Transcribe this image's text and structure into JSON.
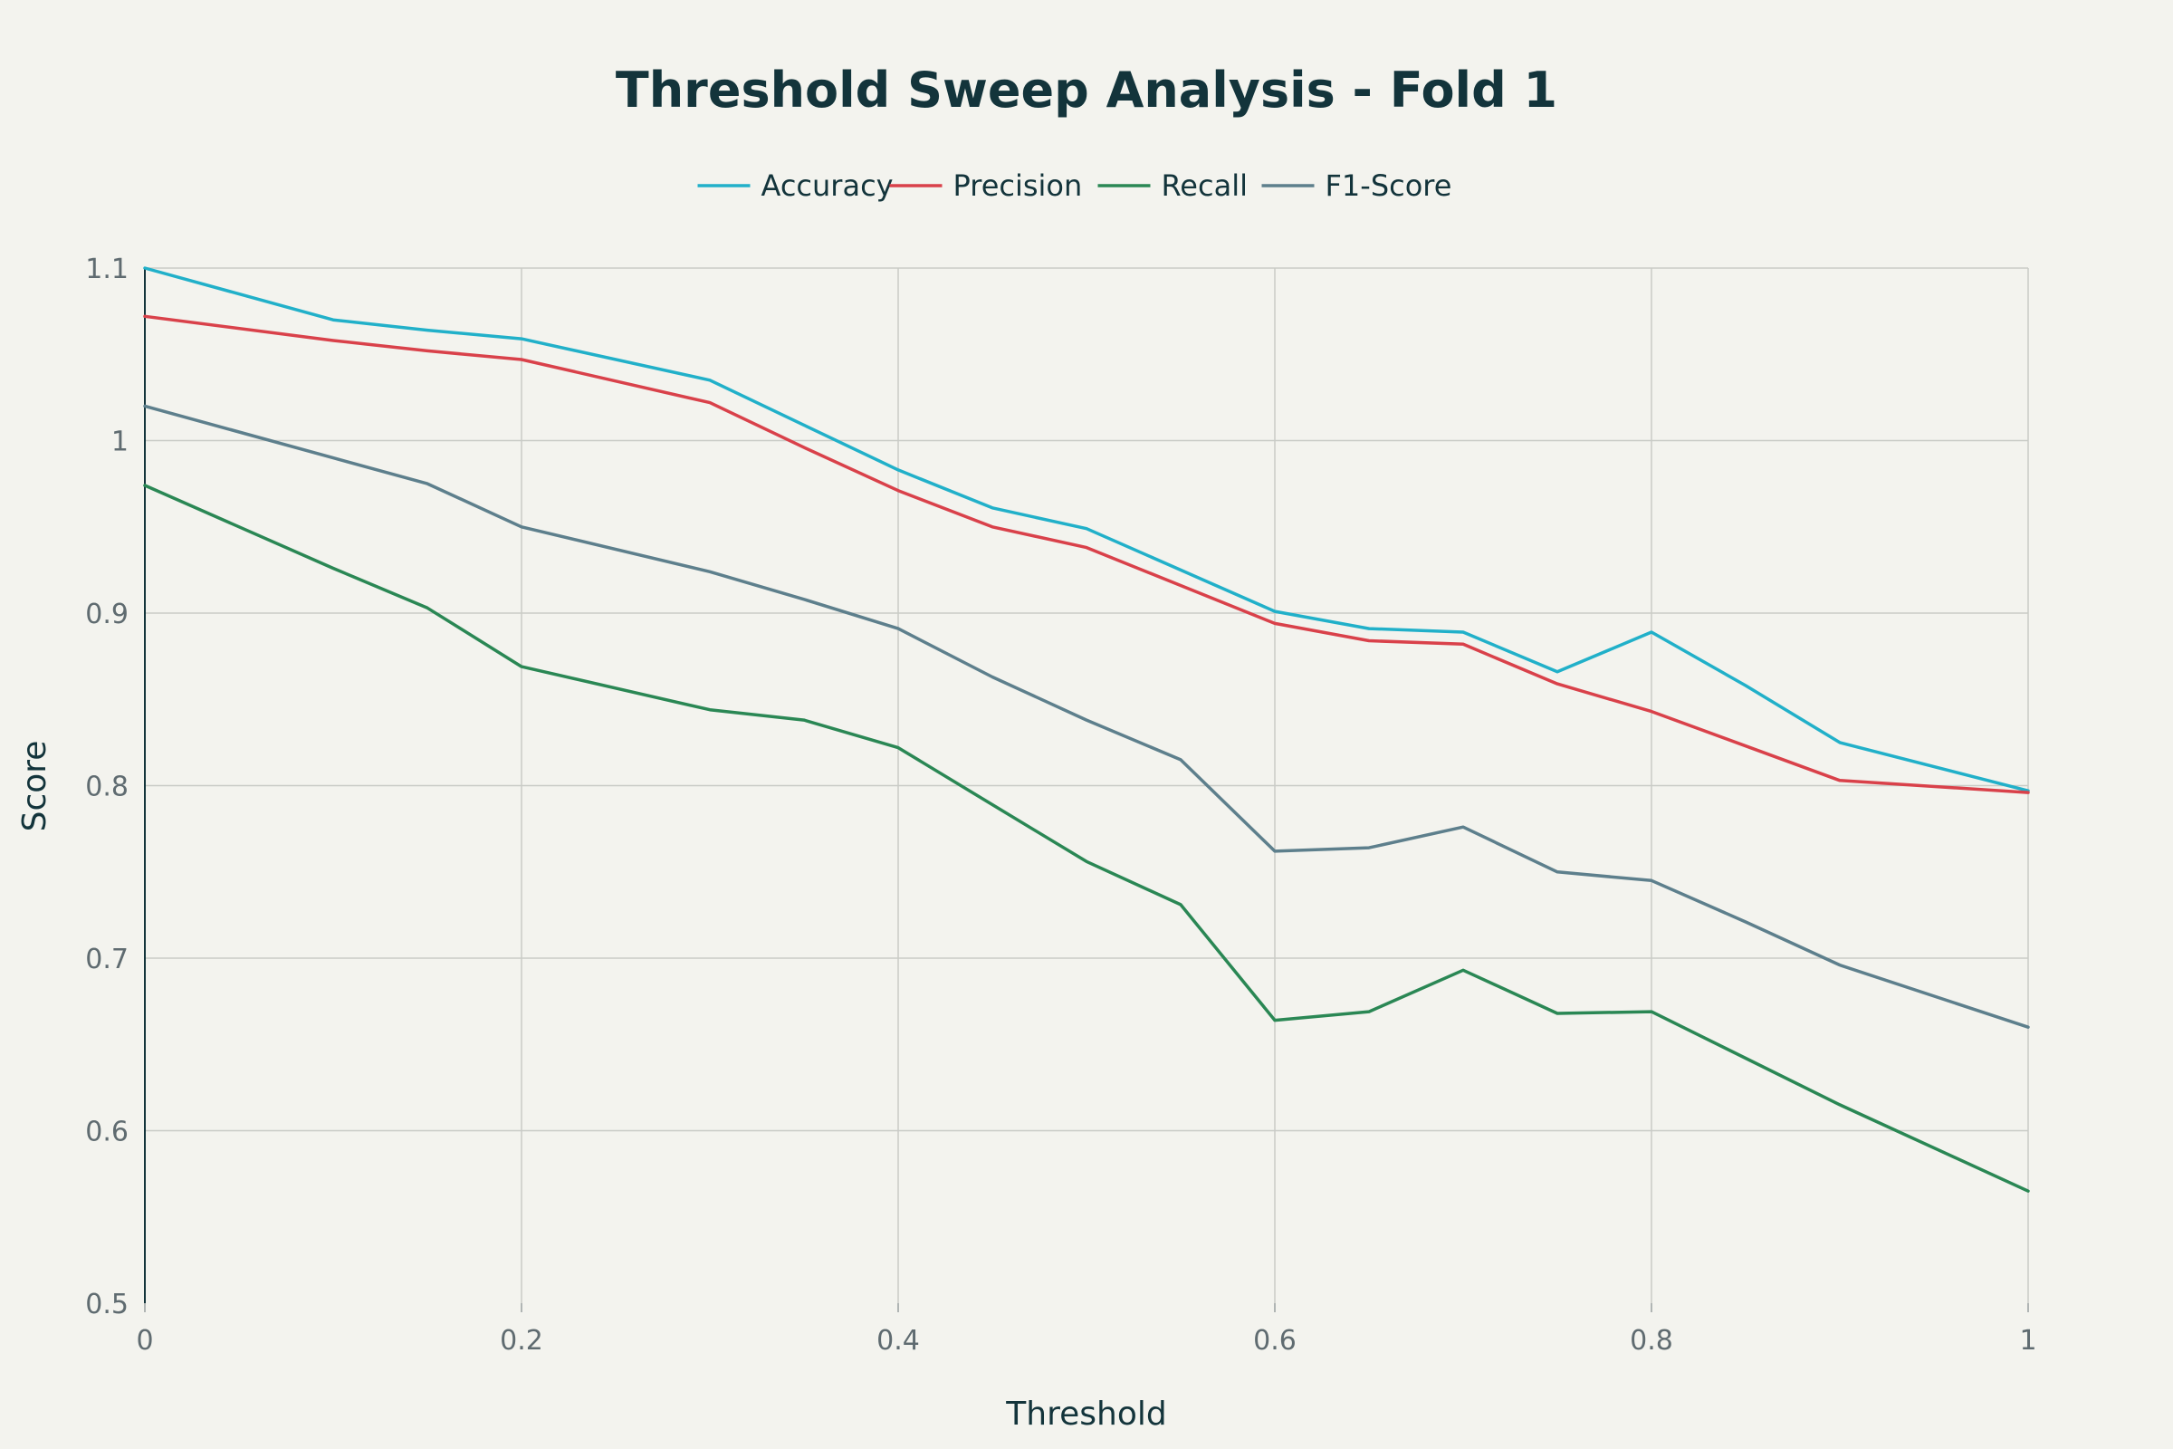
{
  "chart_data": {
    "type": "line",
    "title": "Threshold Sweep Analysis - Fold 1",
    "xlabel": "Threshold",
    "ylabel": "Score",
    "xlim": [
      0,
      1
    ],
    "ylim": [
      0.5,
      1.1
    ],
    "x_ticks": [
      0,
      0.2,
      0.4,
      0.6,
      0.8,
      1
    ],
    "x_tick_labels": [
      "0",
      "0.2",
      "0.4",
      "0.6",
      "0.8",
      "1"
    ],
    "y_ticks": [
      0.5,
      0.6,
      0.7,
      0.8,
      0.9,
      1.0,
      1.1
    ],
    "y_tick_labels": [
      "0.5",
      "0.6",
      "0.7",
      "0.8",
      "0.9",
      "1",
      "1.1"
    ],
    "grid": true,
    "legend_position": "top-center",
    "x": [
      0,
      0.1,
      0.15,
      0.2,
      0.3,
      0.35,
      0.4,
      0.45,
      0.5,
      0.55,
      0.6,
      0.65,
      0.7,
      0.75,
      0.8,
      0.85,
      0.9,
      1.0
    ],
    "series": [
      {
        "name": "Accuracy",
        "color": "#21b0c9",
        "values": [
          1.1,
          1.07,
          1.064,
          1.059,
          1.035,
          1.009,
          0.983,
          0.961,
          0.949,
          0.925,
          0.901,
          0.891,
          0.889,
          0.866,
          0.889,
          0.858,
          0.825,
          0.797
        ]
      },
      {
        "name": "Precision",
        "color": "#d9414a",
        "values": [
          1.072,
          1.058,
          1.052,
          1.047,
          1.022,
          0.996,
          0.971,
          0.95,
          0.938,
          0.916,
          0.894,
          0.884,
          0.882,
          0.859,
          0.843,
          0.823,
          0.803,
          0.796
        ]
      },
      {
        "name": "Recall",
        "color": "#2a8754",
        "values": [
          0.974,
          0.926,
          0.903,
          0.869,
          0.844,
          0.838,
          0.822,
          0.789,
          0.756,
          0.731,
          0.664,
          0.669,
          0.693,
          0.668,
          0.669,
          0.642,
          0.615,
          0.565
        ]
      },
      {
        "name": "F1-Score",
        "color": "#5d7f8c",
        "values": [
          1.02,
          0.99,
          0.975,
          0.95,
          0.924,
          0.908,
          0.891,
          0.863,
          0.838,
          0.815,
          0.762,
          0.764,
          0.776,
          0.75,
          0.745,
          0.721,
          0.696,
          0.66
        ]
      }
    ]
  }
}
